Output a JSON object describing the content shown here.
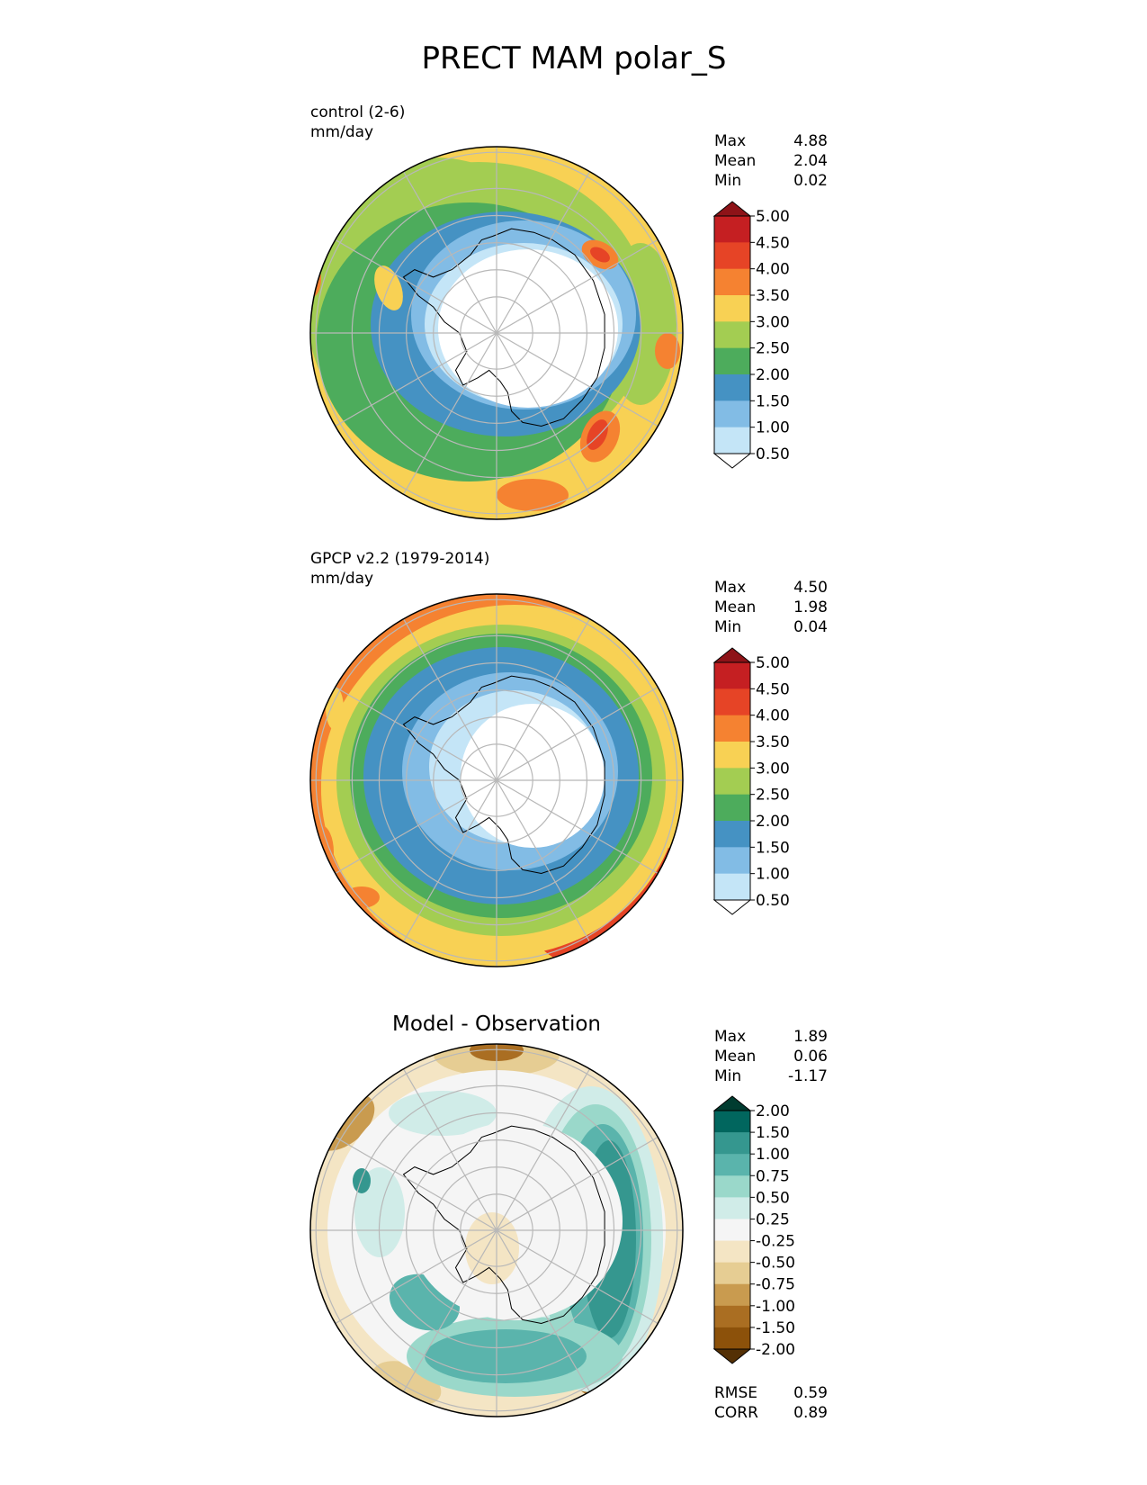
{
  "title": "PRECT MAM polar_S",
  "panels": [
    {
      "id": "test",
      "heading": "control (2-6)",
      "units": "mm/day",
      "stats": [
        {
          "label": "Max",
          "value": "4.88"
        },
        {
          "label": "Mean",
          "value": "2.04"
        },
        {
          "label": "Min",
          "value": "0.02"
        }
      ],
      "colorbar": "precip",
      "map_style": "test"
    },
    {
      "id": "ref",
      "heading": "GPCP v2.2 (1979-2014)",
      "units": "mm/day",
      "stats": [
        {
          "label": "Max",
          "value": "4.50"
        },
        {
          "label": "Mean",
          "value": "1.98"
        },
        {
          "label": "Min",
          "value": "0.04"
        }
      ],
      "colorbar": "precip",
      "map_style": "ref"
    },
    {
      "id": "diff",
      "title": "Model - Observation",
      "stats": [
        {
          "label": "Max",
          "value": "1.89"
        },
        {
          "label": "Mean",
          "value": "0.06"
        },
        {
          "label": "Min",
          "value": "-1.17"
        }
      ],
      "colorbar": "diff",
      "map_style": "diff",
      "metrics": [
        {
          "label": "RMSE",
          "value": "0.59"
        },
        {
          "label": "CORR",
          "value": "0.89"
        }
      ]
    }
  ],
  "colorbars": {
    "precip": {
      "labels": [
        "5.00",
        "4.50",
        "4.00",
        "3.50",
        "3.00",
        "2.50",
        "2.00",
        "1.50",
        "1.00",
        "0.50"
      ],
      "top_color": "#8e1318",
      "colors": [
        "#c51f22",
        "#e64426",
        "#f58231",
        "#f8d154",
        "#a3cd52",
        "#4dac5c",
        "#4592c3",
        "#82bce5",
        "#c4e5f7"
      ],
      "bottom_color": "#ffffff"
    },
    "diff": {
      "labels": [
        "2.00",
        "1.50",
        "1.00",
        "0.75",
        "0.50",
        "0.25",
        "-0.25",
        "-0.50",
        "-0.75",
        "-1.00",
        "-1.50",
        "-2.00"
      ],
      "top_color": "#003c30",
      "colors": [
        "#01665e",
        "#35978f",
        "#5ab4ac",
        "#9ad8ca",
        "#d0ece8",
        "#f5f5f5",
        "#f4e5c4",
        "#e6cd93",
        "#c99b4f",
        "#aa6e22",
        "#8c510a"
      ],
      "bottom_color": "#543005"
    }
  },
  "chart_data": {
    "type": "heatmap",
    "projection": "south polar stereographic",
    "variable": "PRECT",
    "season": "MAM",
    "region": "polar_S",
    "panels": [
      {
        "name": "control (2-6)",
        "units": "mm/day",
        "max": 4.88,
        "mean": 2.04,
        "min": 0.02,
        "levels": [
          0.5,
          1.0,
          1.5,
          2.0,
          2.5,
          3.0,
          3.5,
          4.0,
          4.5,
          5.0
        ]
      },
      {
        "name": "GPCP v2.2 (1979-2014)",
        "units": "mm/day",
        "max": 4.5,
        "mean": 1.98,
        "min": 0.04,
        "levels": [
          0.5,
          1.0,
          1.5,
          2.0,
          2.5,
          3.0,
          3.5,
          4.0,
          4.5,
          5.0
        ]
      },
      {
        "name": "Model - Observation",
        "max": 1.89,
        "mean": 0.06,
        "min": -1.17,
        "rmse": 0.59,
        "corr": 0.89,
        "levels": [
          -2.0,
          -1.5,
          -1.0,
          -0.75,
          -0.5,
          -0.25,
          0.25,
          0.5,
          0.75,
          1.0,
          1.5,
          2.0
        ]
      }
    ]
  }
}
